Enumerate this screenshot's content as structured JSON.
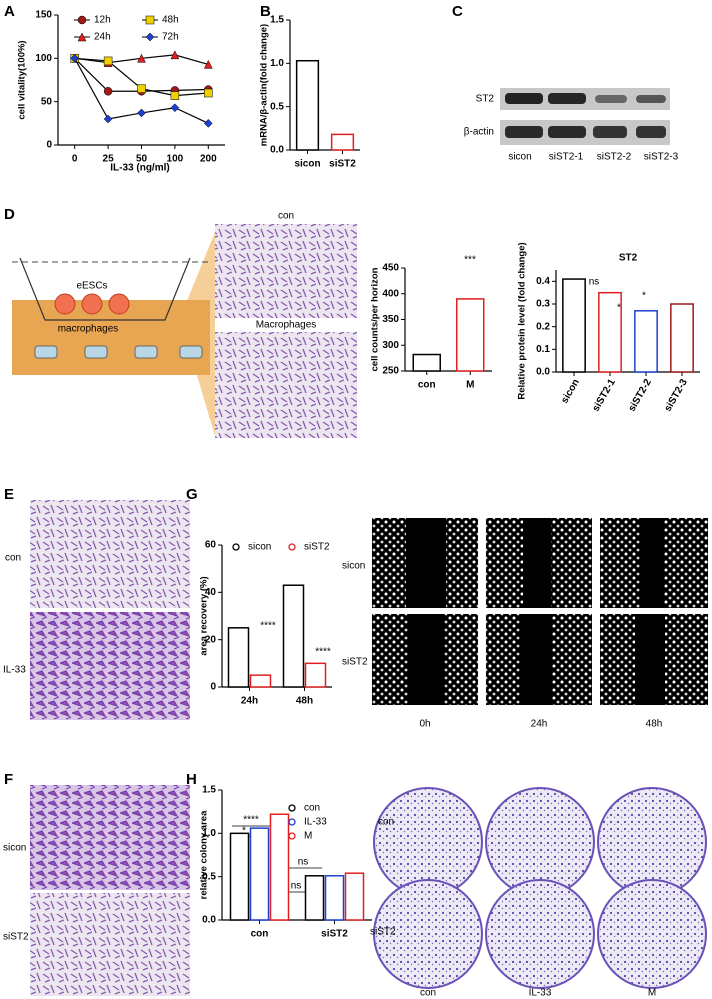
{
  "panel_labels": [
    "A",
    "B",
    "C",
    "D",
    "E",
    "G",
    "F",
    "H"
  ],
  "chart_data": [
    {
      "type": "line",
      "ylabel": "cell vitality(100%)",
      "xlabel": "IL-33 (ng/ml)",
      "categories": [
        "0",
        "25",
        "50",
        "100",
        "200"
      ],
      "ylim": [
        0,
        150
      ],
      "yticks": [
        0,
        50,
        100,
        150
      ],
      "series": [
        {
          "name": "12h",
          "color": "#a01818",
          "values": [
            100,
            62,
            62,
            63,
            64
          ]
        },
        {
          "name": "24h",
          "color": "#e02020",
          "values": [
            100,
            95,
            100,
            104,
            93
          ]
        },
        {
          "name": "48h",
          "color": "#f0d000",
          "values": [
            100,
            97,
            65,
            57,
            60
          ]
        },
        {
          "name": "72h",
          "color": "#1f3fd0",
          "values": [
            100,
            30,
            37,
            43,
            25
          ]
        }
      ]
    },
    {
      "type": "bar",
      "ylabel": "mRNA/β-actin(fold change)",
      "categories": [
        "sicon",
        "siST2"
      ],
      "values": [
        1.03,
        0.18
      ],
      "colors": [
        "#000000",
        "#e02020"
      ],
      "ylim": [
        0,
        1.5
      ],
      "yticks": [
        {
          "value": 0,
          "label": "0.0"
        },
        0.5,
        {
          "value": 1,
          "label": "1.0"
        },
        1.5
      ]
    },
    {
      "type": "bar",
      "ylabel": "cell counts/per horizon",
      "categories": [
        "con",
        "M"
      ],
      "values": [
        282,
        390
      ],
      "colors": [
        "#000000",
        "#e02020"
      ],
      "ylim": [
        250,
        450
      ],
      "yticks": [
        250,
        300,
        350,
        400,
        450
      ],
      "annotations": [
        "***"
      ]
    },
    {
      "type": "bar",
      "title": "ST2",
      "ylabel": "Relative protein level (fold change)",
      "categories": [
        "sicon",
        "siST2-1",
        "siST2-2",
        "siST2-3"
      ],
      "values": [
        0.41,
        0.35,
        0.27,
        0.3
      ],
      "colors": [
        "#000000",
        "#e02020",
        "#1f3fd0",
        "#a01818"
      ],
      "ylim": [
        0,
        0.45
      ],
      "yticks": [
        {
          "value": 0,
          "label": "0.0"
        },
        0.1,
        0.2,
        0.3,
        0.4
      ],
      "annotations": [
        "ns",
        "*",
        "*"
      ]
    },
    {
      "type": "bar",
      "ylabel": "area recovery (%)",
      "categories": [
        "24h",
        "48h"
      ],
      "ylim": [
        0,
        60
      ],
      "yticks": [
        0,
        20,
        40,
        60
      ],
      "series": [
        {
          "name": "sicon",
          "color": "#000000",
          "values": [
            25,
            43
          ]
        },
        {
          "name": "siST2",
          "color": "#e02020",
          "values": [
            5,
            10
          ]
        }
      ],
      "annotations": [
        "****",
        "****"
      ]
    },
    {
      "type": "bar",
      "ylabel": "relative colony area",
      "categories": [
        "con",
        "siST2"
      ],
      "ylim": [
        0,
        1.5
      ],
      "yticks": [
        {
          "value": 0,
          "label": "0.0"
        },
        0.5,
        {
          "value": 1,
          "label": "1.0"
        },
        1.5
      ],
      "series": [
        {
          "name": "con",
          "color": "#000000",
          "values": [
            1.0,
            0.51
          ]
        },
        {
          "name": "IL-33",
          "color": "#1f3fd0",
          "values": [
            1.06,
            0.51
          ]
        },
        {
          "name": "M",
          "color": "#e02020",
          "values": [
            1.22,
            0.54
          ]
        }
      ],
      "annotations": [
        "*",
        "****",
        "ns",
        "ns"
      ]
    }
  ],
  "blot": {
    "bands": [
      "ST2",
      "β-actin"
    ],
    "lanes": [
      "sicon",
      "siST2-1",
      "siST2-2",
      "siST2-3"
    ]
  },
  "diagram": {
    "labels": [
      "eESCs",
      "macrophages"
    ]
  },
  "micrographs_d": [
    "con",
    "Macrophages"
  ],
  "micrographs_e": [
    "con",
    "IL-33"
  ],
  "micrographs_f": [
    "sicon",
    "siST2"
  ],
  "wound": {
    "rows": [
      "sicon",
      "siST2"
    ],
    "columns": [
      "0h",
      "24h",
      "48h"
    ]
  },
  "colony": {
    "rows": [
      "con",
      "siST2"
    ],
    "columns": [
      "con",
      "IL-33",
      "M"
    ]
  }
}
